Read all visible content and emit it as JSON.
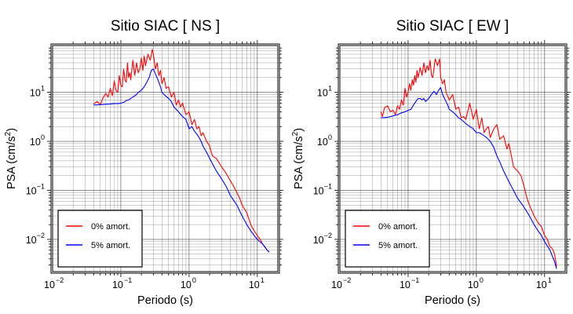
{
  "chart_data": [
    {
      "type": "line",
      "title": "Sitio SIAC [ NS ]",
      "xlabel": "Periodo (s)",
      "ylabel": "PSA (cm/s²)",
      "ylabel_base": "PSA (cm/s",
      "ylabel_sup": "2",
      "ylabel_end": ")",
      "xscale": "log",
      "yscale": "log",
      "xlim": [
        0.01,
        20
      ],
      "ylim": [
        0.0022,
        90
      ],
      "xticks": [
        {
          "base": "10",
          "exp": "−2",
          "v": 0.01
        },
        {
          "base": "10",
          "exp": "−1",
          "v": 0.1
        },
        {
          "base": "10",
          "exp": "0",
          "v": 1
        },
        {
          "base": "10",
          "exp": "1",
          "v": 10
        }
      ],
      "yticks": [
        {
          "base": "10",
          "exp": "−2",
          "v": 0.01
        },
        {
          "base": "10",
          "exp": "−1",
          "v": 0.1
        },
        {
          "base": "10",
          "exp": "0",
          "v": 1
        },
        {
          "base": "10",
          "exp": "1",
          "v": 10
        }
      ],
      "grid": true,
      "legend_position": "bottom-left",
      "series": [
        {
          "name": "0% amort.",
          "color": "#ff0000",
          "x": [
            0.04,
            0.045,
            0.05,
            0.055,
            0.06,
            0.065,
            0.07,
            0.075,
            0.08,
            0.085,
            0.09,
            0.095,
            0.1,
            0.105,
            0.11,
            0.115,
            0.12,
            0.125,
            0.13,
            0.135,
            0.14,
            0.15,
            0.16,
            0.17,
            0.18,
            0.19,
            0.2,
            0.21,
            0.22,
            0.23,
            0.25,
            0.27,
            0.29,
            0.3,
            0.32,
            0.34,
            0.36,
            0.38,
            0.4,
            0.43,
            0.46,
            0.5,
            0.55,
            0.6,
            0.65,
            0.7,
            0.75,
            0.8,
            0.9,
            1.0,
            1.1,
            1.2,
            1.3,
            1.4,
            1.5,
            1.6,
            1.8,
            2.0,
            2.2,
            2.5,
            2.8,
            3.0,
            3.5,
            4.0,
            4.5,
            5.0,
            5.5,
            6.0,
            7.0,
            8.0,
            9.0,
            10,
            11,
            12,
            13,
            14,
            15
          ],
          "y": [
            5.8,
            6.5,
            5.6,
            7.8,
            9.5,
            8,
            12,
            8.5,
            17,
            11,
            10,
            22,
            14,
            13,
            30,
            18,
            16,
            40,
            20,
            25,
            18,
            45,
            22,
            40,
            25,
            30,
            50,
            28,
            55,
            35,
            60,
            45,
            75,
            60,
            30,
            40,
            22,
            28,
            15,
            20,
            12,
            13,
            8,
            10,
            5.5,
            7,
            5,
            6,
            3.5,
            4,
            2.2,
            2.8,
            1.8,
            2,
            1.3,
            1.5,
            1.0,
            0.8,
            0.5,
            0.45,
            0.35,
            0.3,
            0.22,
            0.16,
            0.12,
            0.09,
            0.07,
            0.05,
            0.035,
            0.02,
            0.015,
            0.012,
            0.01,
            0.008,
            0.007,
            0.006,
            0.0055
          ]
        },
        {
          "name": "5% amort.",
          "color": "#0000ff",
          "x": [
            0.04,
            0.05,
            0.06,
            0.07,
            0.08,
            0.09,
            0.1,
            0.11,
            0.12,
            0.13,
            0.14,
            0.15,
            0.16,
            0.17,
            0.18,
            0.19,
            0.2,
            0.22,
            0.24,
            0.26,
            0.28,
            0.3,
            0.32,
            0.35,
            0.38,
            0.4,
            0.45,
            0.5,
            0.55,
            0.6,
            0.7,
            0.8,
            0.9,
            1.0,
            1.1,
            1.2,
            1.3,
            1.4,
            1.5,
            1.6,
            1.8,
            2.0,
            2.2,
            2.5,
            3.0,
            3.5,
            4.0,
            5.0,
            6.0,
            7.0,
            8.0,
            9.0,
            10,
            12,
            14,
            15
          ],
          "y": [
            5.5,
            5.6,
            5.7,
            5.8,
            5.9,
            5.9,
            6.0,
            6.2,
            6.8,
            7.0,
            7.5,
            8.0,
            8.5,
            9.0,
            10.0,
            10.5,
            11.0,
            13,
            16,
            20,
            28,
            30,
            24,
            18,
            13,
            10,
            8.5,
            7.5,
            6.5,
            5.0,
            4.0,
            3.2,
            2.8,
            1.8,
            2.0,
            1.6,
            1.4,
            1.2,
            1.0,
            0.8,
            0.6,
            0.45,
            0.35,
            0.25,
            0.17,
            0.12,
            0.08,
            0.05,
            0.03,
            0.02,
            0.015,
            0.012,
            0.01,
            0.008,
            0.006,
            0.0055
          ]
        }
      ]
    },
    {
      "type": "line",
      "title": "Sitio SIAC [ EW ]",
      "xlabel": "Periodo (s)",
      "ylabel": "PSA (cm/s²)",
      "ylabel_base": "PSA (cm/s",
      "ylabel_sup": "2",
      "ylabel_end": ")",
      "xscale": "log",
      "yscale": "log",
      "xlim": [
        0.01,
        20
      ],
      "ylim": [
        0.0022,
        90
      ],
      "xticks": [
        {
          "base": "10",
          "exp": "−2",
          "v": 0.01
        },
        {
          "base": "10",
          "exp": "−1",
          "v": 0.1
        },
        {
          "base": "10",
          "exp": "0",
          "v": 1
        },
        {
          "base": "10",
          "exp": "1",
          "v": 10
        }
      ],
      "yticks": [
        {
          "base": "10",
          "exp": "−2",
          "v": 0.01
        },
        {
          "base": "10",
          "exp": "−1",
          "v": 0.1
        },
        {
          "base": "10",
          "exp": "0",
          "v": 1
        },
        {
          "base": "10",
          "exp": "1",
          "v": 10
        }
      ],
      "grid": true,
      "legend_position": "bottom-left",
      "series": [
        {
          "name": "0% amort.",
          "color": "#ff0000",
          "x": [
            0.04,
            0.042,
            0.045,
            0.05,
            0.055,
            0.06,
            0.065,
            0.07,
            0.075,
            0.08,
            0.085,
            0.09,
            0.095,
            0.1,
            0.105,
            0.11,
            0.115,
            0.12,
            0.125,
            0.13,
            0.135,
            0.14,
            0.15,
            0.16,
            0.17,
            0.18,
            0.19,
            0.2,
            0.21,
            0.22,
            0.23,
            0.25,
            0.27,
            0.29,
            0.3,
            0.32,
            0.34,
            0.36,
            0.4,
            0.45,
            0.5,
            0.55,
            0.6,
            0.65,
            0.7,
            0.8,
            0.9,
            1.0,
            1.1,
            1.2,
            1.3,
            1.4,
            1.5,
            1.6,
            1.8,
            2.0,
            2.2,
            2.5,
            2.8,
            3.0,
            3.5,
            4.0,
            4.5,
            5.0,
            5.5,
            6.0,
            7.0,
            8.0,
            9.0,
            10,
            11,
            12,
            13,
            14,
            15
          ],
          "y": [
            4.0,
            3.2,
            4.8,
            5.3,
            4.0,
            4.3,
            3.5,
            5.3,
            4.5,
            7.0,
            5.5,
            12,
            8,
            10,
            15,
            11,
            18,
            14,
            22,
            16,
            28,
            20,
            32,
            22,
            40,
            25,
            35,
            28,
            45,
            22,
            20,
            48,
            35,
            48,
            20,
            15,
            18,
            10,
            7,
            9,
            4.5,
            5,
            3.0,
            3.2,
            2.8,
            6,
            2.8,
            4.5,
            1.8,
            3.0,
            1.5,
            1.8,
            2.0,
            1.2,
            1.8,
            2.2,
            1.1,
            1.3,
            0.7,
            0.9,
            0.3,
            0.25,
            0.2,
            0.12,
            0.07,
            0.05,
            0.03,
            0.022,
            0.018,
            0.012,
            0.01,
            0.007,
            0.0065,
            0.005,
            0.0028
          ]
        },
        {
          "name": "5% amort.",
          "color": "#0000ff",
          "x": [
            0.04,
            0.05,
            0.06,
            0.07,
            0.08,
            0.09,
            0.1,
            0.11,
            0.12,
            0.13,
            0.14,
            0.15,
            0.16,
            0.17,
            0.18,
            0.19,
            0.2,
            0.22,
            0.24,
            0.26,
            0.28,
            0.3,
            0.32,
            0.35,
            0.38,
            0.4,
            0.45,
            0.5,
            0.55,
            0.6,
            0.7,
            0.8,
            0.9,
            1.0,
            1.1,
            1.2,
            1.3,
            1.4,
            1.5,
            1.6,
            1.8,
            2.0,
            2.2,
            2.5,
            3.0,
            3.5,
            4.0,
            5.0,
            6.0,
            7.0,
            8.0,
            9.0,
            10,
            12,
            14,
            15
          ],
          "y": [
            3.0,
            3.1,
            3.3,
            3.5,
            3.8,
            4.0,
            4.3,
            4.5,
            5.5,
            6.5,
            7.5,
            7.5,
            7.0,
            7.5,
            6.5,
            7.0,
            7.5,
            9.0,
            10.5,
            9.0,
            11.0,
            12.5,
            9.0,
            7.0,
            5.5,
            4.5,
            4.0,
            3.5,
            3.0,
            2.8,
            2.3,
            2.0,
            1.8,
            1.5,
            1.5,
            1.4,
            1.3,
            1.2,
            1.1,
            1.0,
            0.75,
            0.5,
            0.38,
            0.25,
            0.15,
            0.1,
            0.07,
            0.045,
            0.03,
            0.02,
            0.015,
            0.012,
            0.009,
            0.006,
            0.0035,
            0.0025
          ]
        }
      ]
    }
  ]
}
